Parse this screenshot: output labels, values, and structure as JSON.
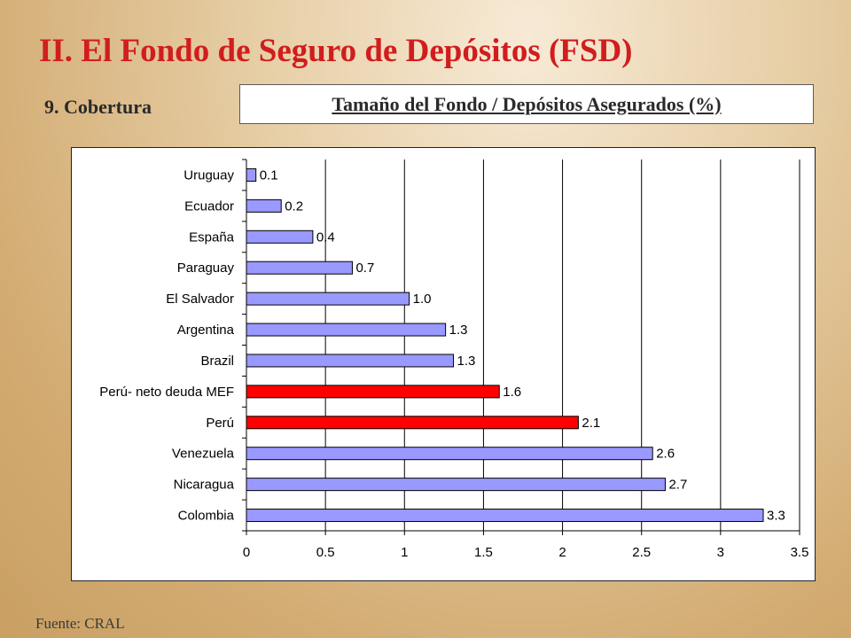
{
  "slide": {
    "title": "II. El Fondo de Seguro de Depósitos (FSD)",
    "subtitle": "9. Cobertura",
    "source": "Fuente: CRAL"
  },
  "chart_data": {
    "type": "bar",
    "orientation": "horizontal",
    "title": "Tamaño del Fondo / Depósitos Asegurados (%)",
    "xlabel": "",
    "ylabel": "",
    "xlim": [
      0,
      3.5
    ],
    "xticks": [
      0,
      0.5,
      1,
      1.5,
      2,
      2.5,
      3,
      3.5
    ],
    "xtick_labels": [
      "0",
      "0.5",
      "1",
      "1.5",
      "2",
      "2.5",
      "3",
      "3.5"
    ],
    "grid": "vertical",
    "categories": [
      "Uruguay",
      "Ecuador",
      "España",
      "Paraguay",
      "El Salvador",
      "Argentina",
      "Brazil",
      "Perú- neto deuda MEF",
      "Perú",
      "Venezuela",
      "Nicaragua",
      "Colombia"
    ],
    "values": [
      0.06,
      0.22,
      0.42,
      0.67,
      1.03,
      1.26,
      1.31,
      1.6,
      2.1,
      2.57,
      2.65,
      3.27
    ],
    "data_labels": [
      "0.1",
      "0.2",
      "0.4",
      "0.7",
      "1.0",
      "1.3",
      "1.3",
      "1.6",
      "2.1",
      "2.6",
      "2.7",
      "3.3"
    ],
    "highlighted": [
      false,
      false,
      false,
      false,
      false,
      false,
      false,
      true,
      true,
      false,
      false,
      false
    ],
    "colors": {
      "default": "#9999ff",
      "highlight": "#ff0000",
      "outline": "#000000"
    }
  }
}
